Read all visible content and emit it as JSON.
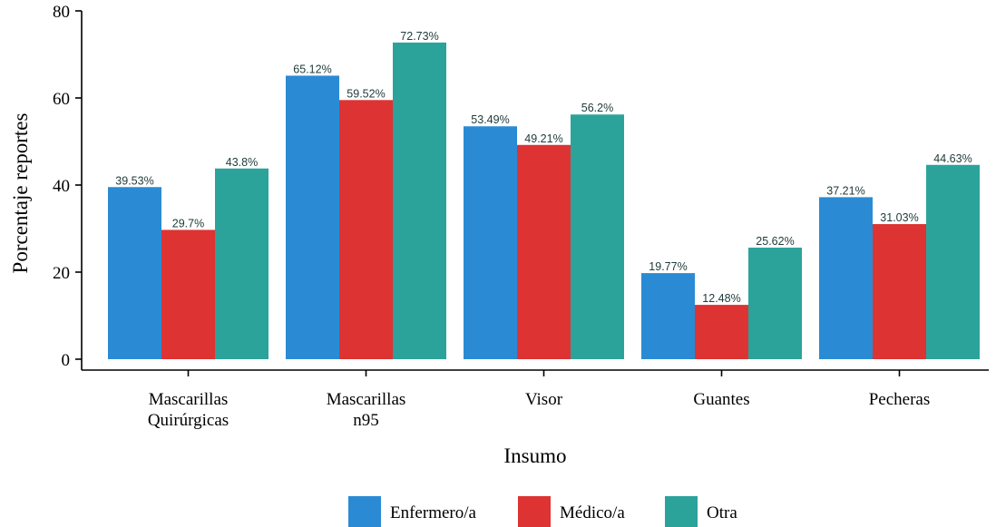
{
  "chart_data": {
    "type": "bar",
    "categories": [
      [
        "Mascarillas",
        "Quirúrgicas"
      ],
      [
        "Mascarillas",
        "n95"
      ],
      [
        "Visor"
      ],
      [
        "Guantes"
      ],
      [
        "Pecheras"
      ]
    ],
    "series": [
      {
        "name": "Enfermero/a",
        "color": "#2a8bd4",
        "values": [
          39.53,
          65.12,
          53.49,
          19.77,
          37.21
        ],
        "labels": [
          "39.53%",
          "65.12%",
          "53.49%",
          "19.77%",
          "37.21%"
        ]
      },
      {
        "name": "Médico/a",
        "color": "#dd3333",
        "values": [
          29.7,
          59.52,
          49.21,
          12.48,
          31.03
        ],
        "labels": [
          "29.7%",
          "59.52%",
          "49.21%",
          "12.48%",
          "31.03%"
        ]
      },
      {
        "name": "Otra",
        "color": "#2ba39b",
        "values": [
          43.8,
          72.73,
          56.2,
          25.62,
          44.63
        ],
        "labels": [
          "43.8%",
          "72.73%",
          "56.2%",
          "25.62%",
          "44.63%"
        ]
      }
    ],
    "xlabel": "Insumo",
    "ylabel": "Porcentaje reportes",
    "ylim": [
      -2.5,
      80
    ],
    "yticks": [
      0,
      20,
      40,
      60,
      80
    ],
    "grid": false,
    "legend_position": "bottom"
  }
}
